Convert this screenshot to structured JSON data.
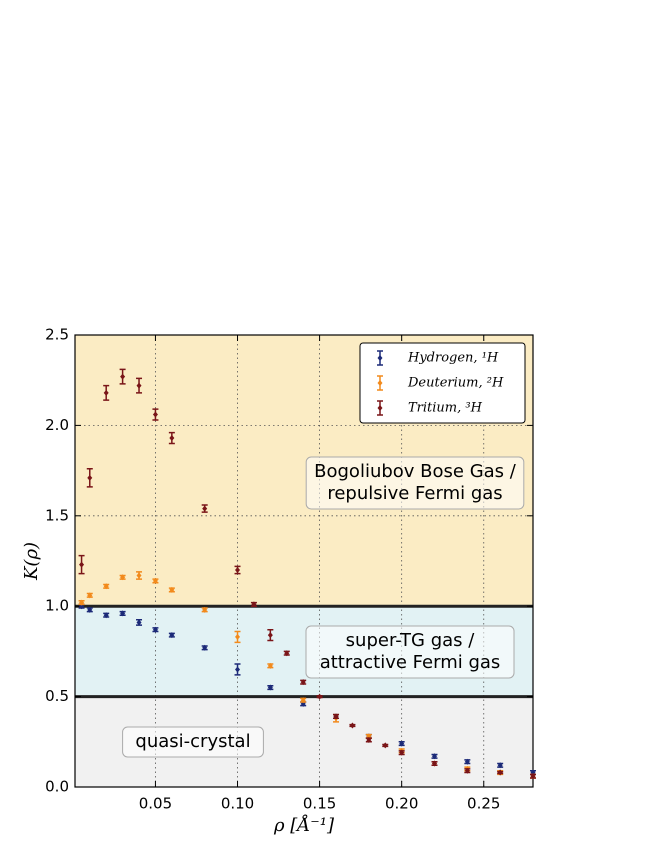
{
  "chart_data": {
    "type": "errorbar-scatter",
    "xlabel": "ρ [Å⁻¹]",
    "ylabel": "K(ρ)",
    "xlim": [
      0.001,
      0.28
    ],
    "ylim": [
      0,
      2.5
    ],
    "xticks": [
      0.05,
      {
        "value": 0.1,
        "label": "0.10"
      },
      0.15,
      {
        "value": 0.2,
        "label": "0.20"
      },
      0.25
    ],
    "yticks": [
      {
        "value": 0,
        "label": "0.0"
      },
      0.5,
      {
        "value": 1,
        "label": "1.0"
      },
      1.5,
      {
        "value": 2,
        "label": "2.0"
      },
      2.5
    ],
    "grid": true,
    "legend": "upper right",
    "hlines": [
      0.5,
      1.0
    ],
    "regions": [
      {
        "label": [
          "quasi-crystal"
        ],
        "from": 0,
        "to": 0.5,
        "color": "#f1f1f1"
      },
      {
        "label": [
          "super-TG gas /",
          "attractive Fermi gas"
        ],
        "from": 0.5,
        "to": 1.0,
        "color": "#e2f2f4"
      },
      {
        "label": [
          "Bogoliubov Bose Gas /",
          "repulsive Fermi gas"
        ],
        "from": 1.0,
        "to": 2.5,
        "color": "#fbecc4"
      }
    ],
    "series": [
      {
        "name": "Hydrogen, ¹H",
        "color": "#1c2a78",
        "x": [
          0.005,
          0.01,
          0.02,
          0.03,
          0.04,
          0.05,
          0.06,
          0.08,
          0.1,
          0.12,
          0.14,
          0.16,
          0.18,
          0.2,
          0.22,
          0.24,
          0.26,
          0.28
        ],
        "values": [
          1.0,
          0.98,
          0.95,
          0.96,
          0.91,
          0.87,
          0.84,
          0.77,
          0.65,
          0.55,
          0.46,
          0.39,
          0.28,
          0.24,
          0.17,
          0.14,
          0.12,
          0.08
        ],
        "errors": [
          0.01,
          0.01,
          0.01,
          0.01,
          0.015,
          0.01,
          0.01,
          0.01,
          0.03,
          0.01,
          0.01,
          0.01,
          0.01,
          0.01,
          0.01,
          0.01,
          0.01,
          0.01
        ]
      },
      {
        "name": "Deuterium, ²H",
        "color": "#f28a1c",
        "x": [
          0.005,
          0.01,
          0.02,
          0.03,
          0.04,
          0.05,
          0.06,
          0.08,
          0.1,
          0.12,
          0.14,
          0.16,
          0.18,
          0.2,
          0.22,
          0.24,
          0.26,
          0.28
        ],
        "values": [
          1.02,
          1.06,
          1.11,
          1.16,
          1.17,
          1.14,
          1.09,
          0.98,
          0.83,
          0.67,
          0.48,
          0.38,
          0.28,
          0.2,
          0.13,
          0.1,
          0.08,
          0.06
        ],
        "errors": [
          0.01,
          0.01,
          0.01,
          0.01,
          0.02,
          0.01,
          0.01,
          0.01,
          0.03,
          0.01,
          0.01,
          0.02,
          0.01,
          0.01,
          0.01,
          0.01,
          0.01,
          0.01
        ]
      },
      {
        "name": "Tritium, ³H",
        "color": "#7a1518",
        "x": [
          0.005,
          0.01,
          0.02,
          0.03,
          0.04,
          0.05,
          0.06,
          0.08,
          0.1,
          0.11,
          0.12,
          0.13,
          0.14,
          0.15,
          0.16,
          0.17,
          0.18,
          0.19,
          0.2,
          0.22,
          0.24,
          0.26,
          0.28
        ],
        "values": [
          1.23,
          1.71,
          2.18,
          2.27,
          2.22,
          2.06,
          1.93,
          1.54,
          1.2,
          1.01,
          0.84,
          0.74,
          0.58,
          0.5,
          0.39,
          0.34,
          0.26,
          0.23,
          0.19,
          0.13,
          0.09,
          0.08,
          0.06
        ],
        "errors": [
          0.05,
          0.05,
          0.04,
          0.04,
          0.04,
          0.03,
          0.03,
          0.02,
          0.02,
          0.01,
          0.03,
          0.01,
          0.01,
          0.005,
          0.01,
          0.005,
          0.01,
          0.005,
          0.01,
          0.01,
          0.01,
          0.005,
          0.01
        ]
      }
    ]
  }
}
